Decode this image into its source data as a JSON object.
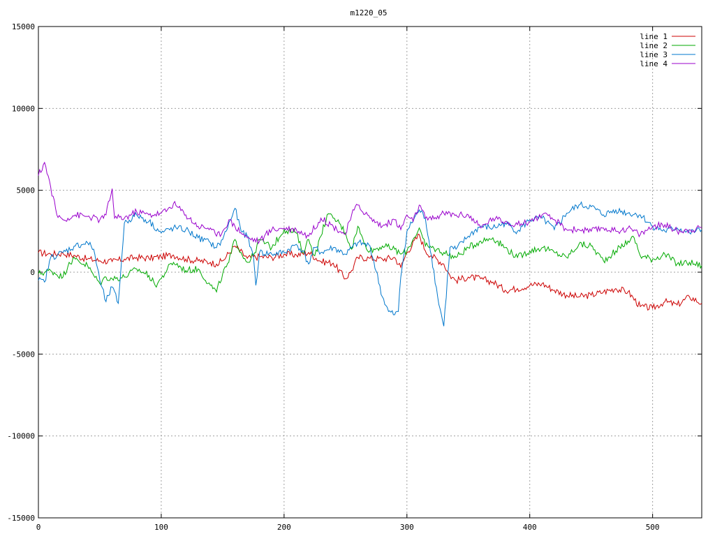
{
  "chart_data": {
    "type": "line",
    "title": "m1220_05",
    "xlabel": "",
    "ylabel": "",
    "xlim": [
      0,
      540
    ],
    "ylim": [
      -15000,
      15000
    ],
    "xticks": [
      0,
      100,
      200,
      300,
      400,
      500
    ],
    "yticks": [
      -15000,
      -10000,
      -5000,
      0,
      5000,
      10000,
      15000
    ],
    "grid": true,
    "legend_position": "top-right",
    "series": [
      {
        "name": "line 1",
        "color": "#cc0000",
        "points": [
          [
            0,
            1200
          ],
          [
            10,
            1100
          ],
          [
            20,
            1150
          ],
          [
            30,
            1000
          ],
          [
            40,
            800
          ],
          [
            50,
            700
          ],
          [
            60,
            650
          ],
          [
            70,
            800
          ],
          [
            80,
            900
          ],
          [
            90,
            850
          ],
          [
            100,
            950
          ],
          [
            110,
            1050
          ],
          [
            120,
            800
          ],
          [
            130,
            700
          ],
          [
            140,
            600
          ],
          [
            145,
            500
          ],
          [
            150,
            700
          ],
          [
            160,
            1600
          ],
          [
            170,
            850
          ],
          [
            180,
            950
          ],
          [
            190,
            900
          ],
          [
            200,
            1100
          ],
          [
            210,
            1050
          ],
          [
            220,
            1200
          ],
          [
            230,
            650
          ],
          [
            240,
            550
          ],
          [
            250,
            -400
          ],
          [
            255,
            100
          ],
          [
            260,
            900
          ],
          [
            270,
            850
          ],
          [
            280,
            800
          ],
          [
            290,
            900
          ],
          [
            295,
            300
          ],
          [
            300,
            1200
          ],
          [
            310,
            2300
          ],
          [
            315,
            1300
          ],
          [
            320,
            1000
          ],
          [
            330,
            500
          ],
          [
            335,
            -200
          ],
          [
            340,
            -500
          ],
          [
            350,
            -300
          ],
          [
            360,
            -400
          ],
          [
            370,
            -600
          ],
          [
            380,
            -1100
          ],
          [
            390,
            -1000
          ],
          [
            400,
            -800
          ],
          [
            410,
            -700
          ],
          [
            420,
            -1100
          ],
          [
            430,
            -1400
          ],
          [
            440,
            -1500
          ],
          [
            450,
            -1400
          ],
          [
            460,
            -1200
          ],
          [
            470,
            -1000
          ],
          [
            480,
            -1200
          ],
          [
            490,
            -2100
          ],
          [
            500,
            -2200
          ],
          [
            510,
            -1800
          ],
          [
            520,
            -2000
          ],
          [
            530,
            -1500
          ],
          [
            540,
            -1900
          ]
        ]
      },
      {
        "name": "line 2",
        "color": "#00aa00",
        "points": [
          [
            0,
            -100
          ],
          [
            10,
            100
          ],
          [
            20,
            -300
          ],
          [
            25,
            600
          ],
          [
            30,
            800
          ],
          [
            40,
            400
          ],
          [
            45,
            -200
          ],
          [
            50,
            -700
          ],
          [
            55,
            -300
          ],
          [
            60,
            -400
          ],
          [
            70,
            -300
          ],
          [
            80,
            200
          ],
          [
            90,
            -200
          ],
          [
            95,
            -800
          ],
          [
            100,
            -400
          ],
          [
            105,
            200
          ],
          [
            110,
            600
          ],
          [
            120,
            100
          ],
          [
            130,
            200
          ],
          [
            140,
            -800
          ],
          [
            145,
            -1200
          ],
          [
            150,
            -100
          ],
          [
            155,
            600
          ],
          [
            160,
            2000
          ],
          [
            165,
            1200
          ],
          [
            170,
            600
          ],
          [
            175,
            1000
          ],
          [
            180,
            2000
          ],
          [
            190,
            1500
          ],
          [
            200,
            2600
          ],
          [
            210,
            2400
          ],
          [
            215,
            1200
          ],
          [
            220,
            2000
          ],
          [
            225,
            1000
          ],
          [
            230,
            2200
          ],
          [
            235,
            3500
          ],
          [
            240,
            3300
          ],
          [
            245,
            3000
          ],
          [
            250,
            2400
          ],
          [
            255,
            1400
          ],
          [
            260,
            2800
          ],
          [
            265,
            1800
          ],
          [
            270,
            1300
          ],
          [
            280,
            1600
          ],
          [
            290,
            1400
          ],
          [
            295,
            1100
          ],
          [
            300,
            1300
          ],
          [
            305,
            2000
          ],
          [
            310,
            2700
          ],
          [
            315,
            1600
          ],
          [
            320,
            1500
          ],
          [
            330,
            1200
          ],
          [
            340,
            900
          ],
          [
            350,
            1500
          ],
          [
            360,
            1900
          ],
          [
            370,
            2100
          ],
          [
            380,
            1500
          ],
          [
            390,
            900
          ],
          [
            400,
            1300
          ],
          [
            410,
            1500
          ],
          [
            420,
            1200
          ],
          [
            430,
            900
          ],
          [
            440,
            1700
          ],
          [
            450,
            1600
          ],
          [
            460,
            700
          ],
          [
            470,
            1300
          ],
          [
            480,
            1900
          ],
          [
            485,
            2100
          ],
          [
            490,
            1000
          ],
          [
            500,
            800
          ],
          [
            510,
            1100
          ],
          [
            520,
            500
          ],
          [
            530,
            600
          ],
          [
            540,
            400
          ]
        ]
      },
      {
        "name": "line 3",
        "color": "#0077cc",
        "points": [
          [
            0,
            -500
          ],
          [
            5,
            -600
          ],
          [
            10,
            900
          ],
          [
            20,
            1200
          ],
          [
            30,
            1600
          ],
          [
            40,
            1800
          ],
          [
            45,
            1400
          ],
          [
            50,
            -500
          ],
          [
            55,
            -1800
          ],
          [
            60,
            -900
          ],
          [
            65,
            -1900
          ],
          [
            70,
            3000
          ],
          [
            80,
            3500
          ],
          [
            90,
            3100
          ],
          [
            100,
            2400
          ],
          [
            110,
            2700
          ],
          [
            120,
            2600
          ],
          [
            130,
            2100
          ],
          [
            140,
            1800
          ],
          [
            145,
            1500
          ],
          [
            150,
            2000
          ],
          [
            160,
            3900
          ],
          [
            165,
            2500
          ],
          [
            170,
            2200
          ],
          [
            175,
            1000
          ],
          [
            177,
            -800
          ],
          [
            180,
            1200
          ],
          [
            190,
            1100
          ],
          [
            200,
            1200
          ],
          [
            210,
            1700
          ],
          [
            215,
            1300
          ],
          [
            220,
            500
          ],
          [
            225,
            1500
          ],
          [
            230,
            1200
          ],
          [
            240,
            1500
          ],
          [
            250,
            1100
          ],
          [
            260,
            1800
          ],
          [
            270,
            1600
          ],
          [
            280,
            -1500
          ],
          [
            285,
            -2400
          ],
          [
            290,
            -2600
          ],
          [
            293,
            -2400
          ],
          [
            295,
            -300
          ],
          [
            300,
            2500
          ],
          [
            310,
            3800
          ],
          [
            315,
            3300
          ],
          [
            320,
            1000
          ],
          [
            325,
            -1500
          ],
          [
            330,
            -3300
          ],
          [
            335,
            1500
          ],
          [
            340,
            1400
          ],
          [
            350,
            2200
          ],
          [
            360,
            2800
          ],
          [
            370,
            2700
          ],
          [
            380,
            3000
          ],
          [
            390,
            2500
          ],
          [
            400,
            3200
          ],
          [
            410,
            3300
          ],
          [
            420,
            2600
          ],
          [
            430,
            3600
          ],
          [
            440,
            4100
          ],
          [
            450,
            4000
          ],
          [
            460,
            3500
          ],
          [
            470,
            3800
          ],
          [
            480,
            3600
          ],
          [
            490,
            3500
          ],
          [
            500,
            2800
          ],
          [
            510,
            2500
          ],
          [
            520,
            2700
          ],
          [
            530,
            2400
          ],
          [
            540,
            2600
          ]
        ]
      },
      {
        "name": "line 4",
        "color": "#9900cc",
        "points": [
          [
            0,
            5900
          ],
          [
            5,
            6700
          ],
          [
            10,
            5200
          ],
          [
            15,
            3500
          ],
          [
            20,
            3200
          ],
          [
            30,
            3500
          ],
          [
            40,
            3400
          ],
          [
            50,
            3200
          ],
          [
            55,
            3500
          ],
          [
            60,
            5100
          ],
          [
            62,
            3300
          ],
          [
            70,
            3300
          ],
          [
            80,
            3700
          ],
          [
            90,
            3500
          ],
          [
            100,
            3600
          ],
          [
            105,
            3800
          ],
          [
            110,
            4200
          ],
          [
            120,
            3500
          ],
          [
            130,
            2800
          ],
          [
            140,
            2700
          ],
          [
            145,
            2200
          ],
          [
            150,
            2500
          ],
          [
            155,
            3200
          ],
          [
            160,
            2800
          ],
          [
            170,
            2100
          ],
          [
            180,
            1900
          ],
          [
            190,
            2600
          ],
          [
            200,
            2700
          ],
          [
            210,
            2600
          ],
          [
            220,
            2200
          ],
          [
            230,
            3300
          ],
          [
            240,
            2800
          ],
          [
            250,
            2300
          ],
          [
            255,
            3500
          ],
          [
            260,
            4100
          ],
          [
            270,
            3300
          ],
          [
            280,
            2800
          ],
          [
            290,
            3200
          ],
          [
            295,
            2600
          ],
          [
            300,
            3500
          ],
          [
            305,
            3100
          ],
          [
            310,
            4100
          ],
          [
            315,
            3300
          ],
          [
            320,
            3200
          ],
          [
            330,
            3600
          ],
          [
            340,
            3500
          ],
          [
            350,
            3500
          ],
          [
            360,
            2700
          ],
          [
            370,
            3300
          ],
          [
            380,
            3100
          ],
          [
            390,
            2900
          ],
          [
            400,
            3100
          ],
          [
            410,
            3500
          ],
          [
            420,
            3200
          ],
          [
            430,
            2600
          ],
          [
            440,
            2600
          ],
          [
            450,
            2500
          ],
          [
            460,
            2700
          ],
          [
            470,
            2500
          ],
          [
            480,
            2700
          ],
          [
            490,
            2300
          ],
          [
            500,
            2800
          ],
          [
            510,
            2900
          ],
          [
            520,
            2500
          ],
          [
            530,
            2600
          ],
          [
            540,
            2700
          ]
        ]
      }
    ]
  }
}
